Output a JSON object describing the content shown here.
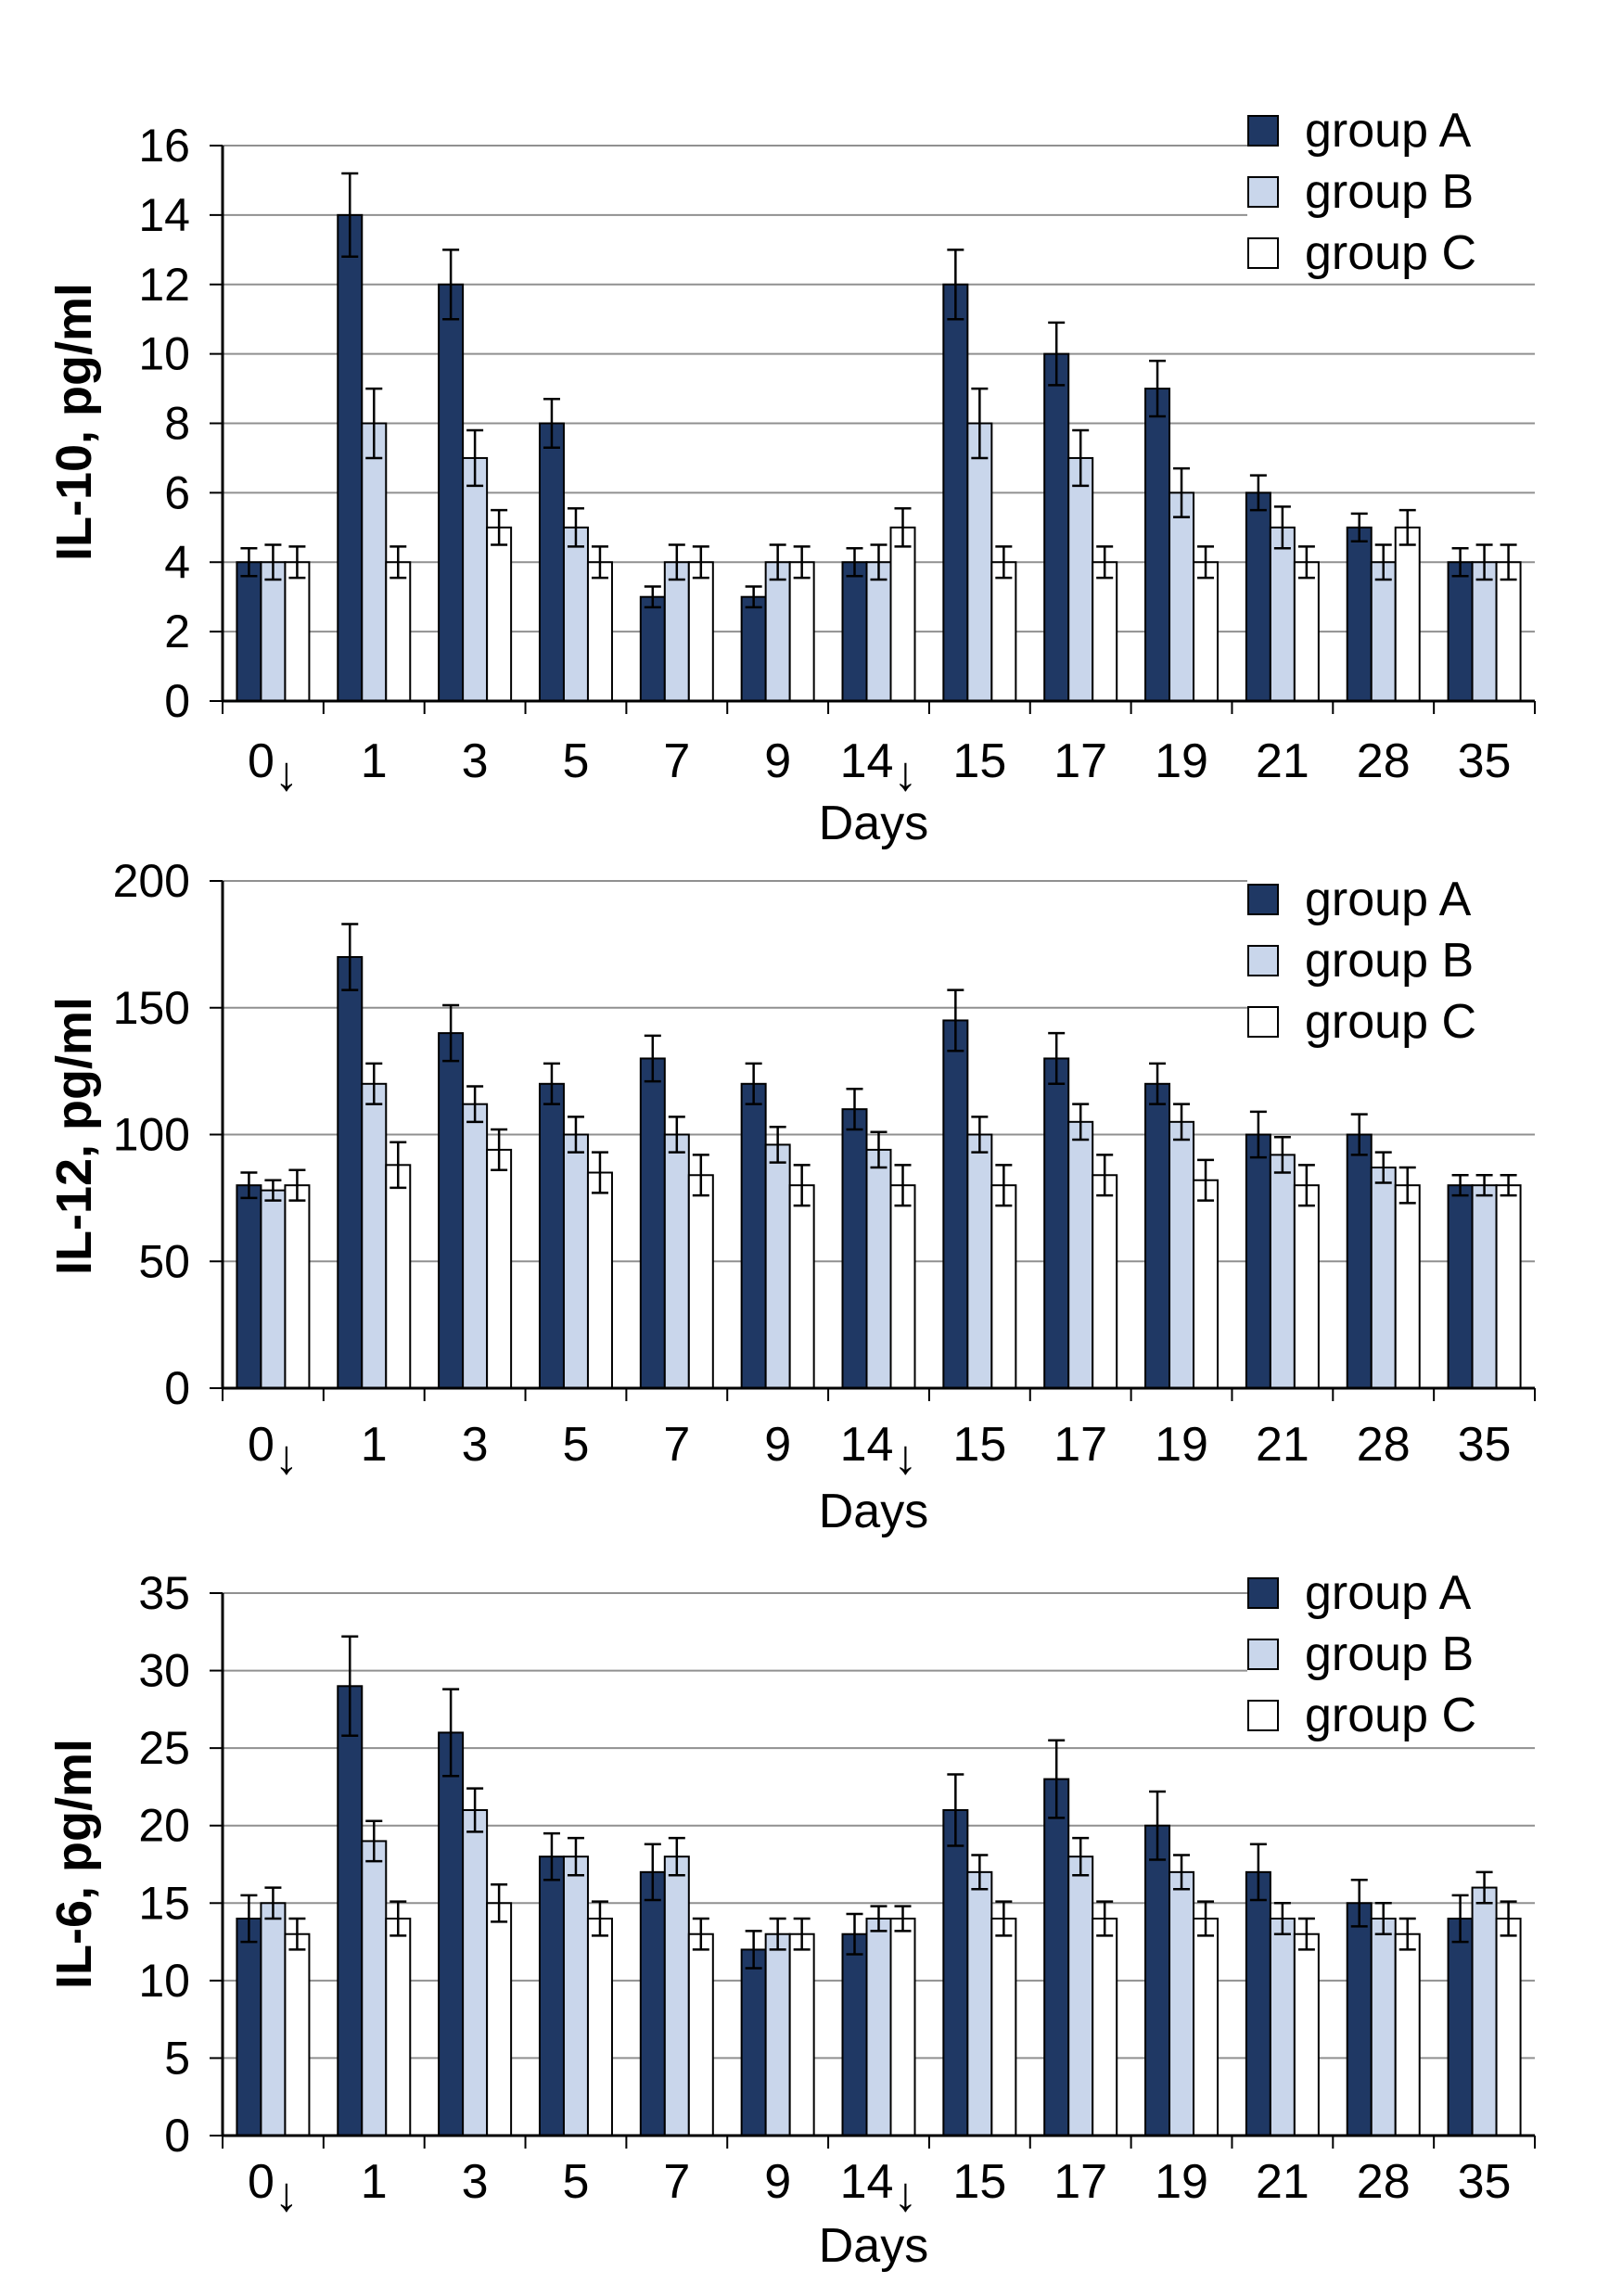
{
  "xlabel": "Days",
  "categories": [
    "0↓",
    "1",
    "3",
    "5",
    "7",
    "9",
    "14↓",
    "15",
    "17",
    "19",
    "21",
    "28",
    "35"
  ],
  "colors": {
    "group_a": "#1F3864",
    "group_b": "#C9D6EB",
    "group_c": "#FFFFFF",
    "gridline": "#909090",
    "axis": "#000000"
  },
  "chart_data": [
    {
      "type": "bar",
      "ylabel": "IL-10, pg/ml",
      "xlabel": "Days",
      "ylim": [
        0,
        16
      ],
      "yticks": [
        0,
        2,
        4,
        6,
        8,
        10,
        12,
        14,
        16
      ],
      "grid": true,
      "legend_position": "top-right",
      "categories": [
        "0↓",
        "1",
        "3",
        "5",
        "7",
        "9",
        "14↓",
        "15",
        "17",
        "19",
        "21",
        "28",
        "35"
      ],
      "series": [
        {
          "name": "group A",
          "color": "#1F3864",
          "values": [
            4,
            14,
            12,
            8,
            3,
            3,
            4,
            12,
            10,
            9,
            6,
            5,
            4
          ],
          "errors": [
            0.4,
            1.2,
            1.0,
            0.7,
            0.3,
            0.3,
            0.4,
            1.0,
            0.9,
            0.8,
            0.5,
            0.4,
            0.4
          ]
        },
        {
          "name": "group B",
          "color": "#C9D6EB",
          "values": [
            4,
            8,
            7,
            5,
            4,
            4,
            4,
            8,
            7,
            6,
            5,
            4,
            4
          ],
          "errors": [
            0.5,
            1.0,
            0.8,
            0.55,
            0.5,
            0.5,
            0.5,
            1.0,
            0.8,
            0.7,
            0.6,
            0.5,
            0.5
          ]
        },
        {
          "name": "group C",
          "color": "#FFFFFF",
          "values": [
            4,
            4,
            5,
            4,
            4,
            4,
            5,
            4,
            4,
            4,
            4,
            5,
            4
          ],
          "errors": [
            0.45,
            0.45,
            0.5,
            0.45,
            0.45,
            0.45,
            0.55,
            0.45,
            0.45,
            0.45,
            0.45,
            0.5,
            0.5
          ]
        }
      ]
    },
    {
      "type": "bar",
      "ylabel": "IL-12, pg/ml",
      "xlabel": "Days",
      "ylim": [
        0,
        200
      ],
      "yticks": [
        0,
        50,
        100,
        150,
        200
      ],
      "grid": true,
      "legend_position": "top-right",
      "categories": [
        "0↓",
        "1",
        "3",
        "5",
        "7",
        "9",
        "14↓",
        "15",
        "17",
        "19",
        "21",
        "28",
        "35"
      ],
      "series": [
        {
          "name": "group A",
          "color": "#1F3864",
          "values": [
            80,
            170,
            140,
            120,
            130,
            120,
            110,
            145,
            130,
            120,
            100,
            100,
            80
          ],
          "errors": [
            5,
            13,
            11,
            8,
            9,
            8,
            8,
            12,
            10,
            8,
            9,
            8,
            4
          ]
        },
        {
          "name": "group B",
          "color": "#C9D6EB",
          "values": [
            78,
            120,
            112,
            100,
            100,
            96,
            94,
            100,
            105,
            105,
            92,
            87,
            80
          ],
          "errors": [
            4,
            8,
            7,
            7,
            7,
            7,
            7,
            7,
            7,
            7,
            7,
            6,
            4
          ]
        },
        {
          "name": "group C",
          "color": "#FFFFFF",
          "values": [
            80,
            88,
            94,
            85,
            84,
            80,
            80,
            80,
            84,
            82,
            80,
            80,
            80
          ],
          "errors": [
            6,
            9,
            8,
            8,
            8,
            8,
            8,
            8,
            8,
            8,
            8,
            7,
            4
          ]
        }
      ]
    },
    {
      "type": "bar",
      "ylabel": "IL-6, pg/ml",
      "xlabel": "Days",
      "ylim": [
        0,
        35
      ],
      "yticks": [
        0,
        5,
        10,
        15,
        20,
        25,
        30,
        35
      ],
      "grid": true,
      "legend_position": "top-right",
      "categories": [
        "0↓",
        "1",
        "3",
        "5",
        "7",
        "9",
        "14↓",
        "15",
        "17",
        "19",
        "21",
        "28",
        "35"
      ],
      "series": [
        {
          "name": "group A",
          "color": "#1F3864",
          "values": [
            14,
            29,
            26,
            18,
            17,
            12,
            13,
            21,
            23,
            20,
            17,
            15,
            14
          ],
          "errors": [
            1.5,
            3.2,
            2.8,
            1.5,
            1.8,
            1.2,
            1.3,
            2.3,
            2.5,
            2.2,
            1.8,
            1.5,
            1.5
          ]
        },
        {
          "name": "group B",
          "color": "#C9D6EB",
          "values": [
            15,
            19,
            21,
            18,
            18,
            13,
            14,
            17,
            18,
            17,
            14,
            14,
            16
          ],
          "errors": [
            1.0,
            1.3,
            1.4,
            1.2,
            1.2,
            1.0,
            0.8,
            1.1,
            1.2,
            1.1,
            1.0,
            1.0,
            1.0
          ]
        },
        {
          "name": "group C",
          "color": "#FFFFFF",
          "values": [
            13,
            14,
            15,
            14,
            13,
            13,
            14,
            14,
            14,
            14,
            13,
            13,
            14
          ],
          "errors": [
            1.0,
            1.1,
            1.2,
            1.1,
            1.0,
            1.0,
            0.8,
            1.1,
            1.1,
            1.1,
            1.0,
            1.0,
            1.1
          ]
        }
      ]
    }
  ]
}
